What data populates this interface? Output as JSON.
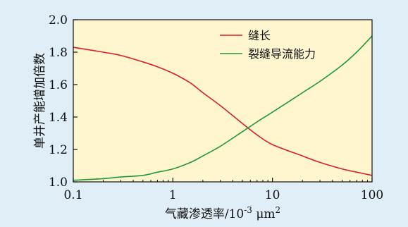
{
  "colors": {
    "page_background": "#e0eef8",
    "plot_background": "#fff6cf",
    "series_1": "#d81e26",
    "series_2": "#1f9a3a"
  },
  "chart_data": {
    "type": "line",
    "title": "",
    "xlabel_main": "气藏渗透率/10",
    "xlabel_exponent": "-3",
    "xlabel_unit": " μm",
    "xlabel_unit_exponent": "2",
    "ylabel": "单井产能增加倍数",
    "x_scale": "log",
    "xlim": [
      0.1,
      100
    ],
    "ylim": [
      1.0,
      2.0
    ],
    "x_ticks": [
      0.1,
      1,
      10,
      100
    ],
    "x_tick_labels": [
      "0.1",
      "1",
      "10",
      "100"
    ],
    "y_ticks": [
      1.0,
      1.2,
      1.4,
      1.6,
      1.8,
      2.0
    ],
    "y_tick_labels": [
      "1.0",
      "1.2",
      "1.4",
      "1.6",
      "1.8",
      "2.0"
    ],
    "grid": false,
    "legend_position": "top-right",
    "series": [
      {
        "name": "缝长",
        "color": "#d81e26",
        "x": [
          0.1,
          0.2,
          0.3,
          0.5,
          0.7,
          1,
          1.5,
          2,
          3,
          5,
          7,
          10,
          20,
          30,
          50,
          70,
          100
        ],
        "y": [
          1.83,
          1.8,
          1.78,
          1.74,
          1.71,
          1.67,
          1.61,
          1.55,
          1.47,
          1.36,
          1.29,
          1.23,
          1.16,
          1.12,
          1.08,
          1.06,
          1.04
        ]
      },
      {
        "name": "裂缝导流能力",
        "color": "#1f9a3a",
        "x": [
          0.1,
          0.2,
          0.3,
          0.5,
          0.7,
          1,
          1.5,
          2,
          3,
          5,
          7,
          10,
          20,
          30,
          50,
          70,
          100
        ],
        "y": [
          1.01,
          1.02,
          1.03,
          1.04,
          1.06,
          1.08,
          1.12,
          1.16,
          1.22,
          1.31,
          1.37,
          1.43,
          1.55,
          1.62,
          1.72,
          1.8,
          1.9
        ]
      }
    ]
  }
}
